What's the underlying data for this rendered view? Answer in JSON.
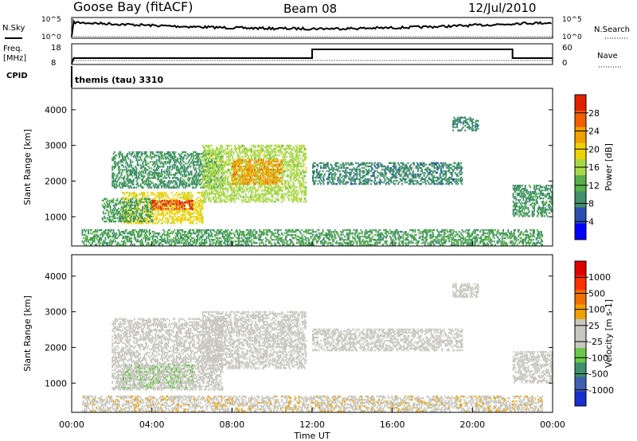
{
  "header": {
    "station": "Goose Bay (fitACF)",
    "beam": "Beam 08",
    "date": "12/Jul/2010"
  },
  "params": {
    "nsky_label": "N.Sky",
    "nsearch_label": "N.Search",
    "noise_ticks_left": [
      "10^5",
      "10^0"
    ],
    "noise_ticks_right": [
      "10^5",
      "10^0"
    ],
    "freq_label": "Freq.",
    "freq_unit": "[MHz]",
    "freq_ticks": [
      "18",
      "8"
    ],
    "nave_label": "Nave",
    "nave_ticks": [
      "60",
      "0"
    ],
    "cpid_label": "CPID",
    "cpid_value": "themis (tau) 3310"
  },
  "colors": {
    "power_scale": [
      "#0000ff",
      "#2a4fb0",
      "#3f8f6a",
      "#59b04a",
      "#a8d84a",
      "#f0d200",
      "#f0a000",
      "#f06000",
      "#e02000"
    ],
    "velocity_scale": [
      "#1a2fd0",
      "#3f5fb0",
      "#3f8f6a",
      "#6ac84a",
      "#c8c8c0",
      "#c8c8c0",
      "#f0a000",
      "#f07000",
      "#ff3000",
      "#e00000"
    ]
  },
  "chart_data": [
    {
      "type": "heatmap",
      "name": "power-panel",
      "x": "Time UT",
      "xlim": [
        "00:00",
        "24:00"
      ],
      "ylabel": "Slant Range [km]",
      "ylim": [
        180,
        4600
      ],
      "yticks": [
        "4000",
        "3000",
        "2000",
        "1000"
      ],
      "colorbar": {
        "label": "Power [dB]",
        "ticks": [
          "28",
          "24",
          "20",
          "16",
          "12",
          "8",
          "4"
        ],
        "range": [
          0,
          30
        ]
      },
      "regions": [
        {
          "t_start": 2.5,
          "t_end": 6.5,
          "r_start": 800,
          "r_end": 1700,
          "value": 18
        },
        {
          "t_start": 1.5,
          "t_end": 4.0,
          "r_start": 850,
          "r_end": 1500,
          "value": 10
        },
        {
          "t_start": 4.0,
          "t_end": 6.0,
          "r_start": 1200,
          "r_end": 1450,
          "value": 26
        },
        {
          "t_start": 2.0,
          "t_end": 7.5,
          "r_start": 1800,
          "r_end": 2800,
          "value": 9
        },
        {
          "t_start": 6.5,
          "t_end": 11.7,
          "r_start": 1400,
          "r_end": 3000,
          "value": 15
        },
        {
          "t_start": 8.0,
          "t_end": 10.5,
          "r_start": 1900,
          "r_end": 2600,
          "value": 22
        },
        {
          "t_start": 12.0,
          "t_end": 19.5,
          "r_start": 1900,
          "r_end": 2500,
          "value": 8
        },
        {
          "t_start": 19.0,
          "t_end": 20.3,
          "r_start": 3400,
          "r_end": 3800,
          "value": 8
        },
        {
          "t_start": 22.0,
          "t_end": 24.0,
          "r_start": 1000,
          "r_end": 1900,
          "value": 9
        },
        {
          "t_start": 0.5,
          "t_end": 23.5,
          "r_start": 200,
          "r_end": 650,
          "value": 10
        }
      ]
    },
    {
      "type": "heatmap",
      "name": "velocity-panel",
      "x": "Time UT",
      "xlabel": "Time UT",
      "xticks": [
        "00:00",
        "04:00",
        "08:00",
        "12:00",
        "16:00",
        "20:00",
        "00:00"
      ],
      "ylabel": "Slant Range [km]",
      "ylim": [
        180,
        4600
      ],
      "yticks": [
        "4000",
        "3000",
        "2000",
        "1000"
      ],
      "colorbar": {
        "label": "Velocity [m s-1]",
        "ticks": [
          "1000",
          "500",
          "100",
          "25",
          "-25",
          "-100",
          "-500",
          "-1000"
        ],
        "range": [
          -1000,
          1000
        ]
      },
      "regions": [
        {
          "t_start": 2.0,
          "t_end": 7.5,
          "r_start": 800,
          "r_end": 2800,
          "value": 0
        },
        {
          "t_start": 6.5,
          "t_end": 11.7,
          "r_start": 1400,
          "r_end": 3000,
          "value": 0
        },
        {
          "t_start": 2.5,
          "t_end": 6.0,
          "r_start": 850,
          "r_end": 1500,
          "value": -150
        },
        {
          "t_start": 12.0,
          "t_end": 19.5,
          "r_start": 1900,
          "r_end": 2500,
          "value": 0
        },
        {
          "t_start": 19.0,
          "t_end": 20.3,
          "r_start": 3400,
          "r_end": 3800,
          "value": 0
        },
        {
          "t_start": 22.0,
          "t_end": 24.0,
          "r_start": 1000,
          "r_end": 1900,
          "value": 0
        },
        {
          "t_start": 0.5,
          "t_end": 23.5,
          "r_start": 200,
          "r_end": 650,
          "value": 120
        }
      ]
    }
  ],
  "xaxis": {
    "label": "Time UT",
    "ticks": [
      "00:00",
      "04:00",
      "08:00",
      "12:00",
      "16:00",
      "20:00",
      "00:00"
    ]
  }
}
